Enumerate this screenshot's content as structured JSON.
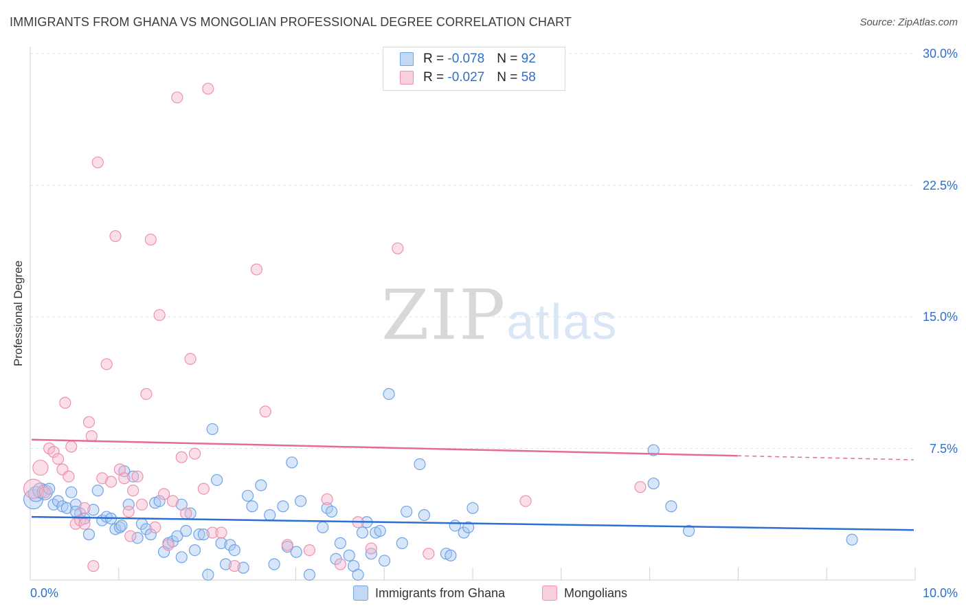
{
  "header": {
    "title": "IMMIGRANTS FROM GHANA VS MONGOLIAN PROFESSIONAL DEGREE CORRELATION CHART",
    "source": "Source: ZipAtlas.com"
  },
  "watermark": {
    "zip": "ZIP",
    "atlas": "atlas"
  },
  "legend": {
    "rows": [
      {
        "r_label": "R = ",
        "r_value": "-0.078",
        "n_label": "N = ",
        "n_value": "92",
        "color": "#a9c7f2"
      },
      {
        "r_label": "R = ",
        "r_value": "-0.027",
        "n_label": "N = ",
        "n_value": "58",
        "color": "#f6b8cb"
      }
    ]
  },
  "chart_data": {
    "type": "scatter",
    "title": "IMMIGRANTS FROM GHANA VS MONGOLIAN PROFESSIONAL DEGREE CORRELATION CHART",
    "xlabel": "",
    "ylabel": "Professional Degree",
    "xlim": [
      0,
      10
    ],
    "ylim": [
      0,
      30
    ],
    "x_tick_labels": [
      "0.0%",
      "10.0%"
    ],
    "y_ticks": [
      7.5,
      15.0,
      22.5,
      30.0
    ],
    "y_tick_labels": [
      "7.5%",
      "15.0%",
      "22.5%",
      "30.0%"
    ],
    "grid": true,
    "legend_position": "top-center",
    "series": [
      {
        "name": "Immigrants from Ghana",
        "color": "#6fa3e6",
        "fill": "#a9c7f2",
        "line_color": "#2a6fd1",
        "trend": {
          "x": [
            0.0,
            10.0
          ],
          "y": [
            3.6,
            2.85
          ],
          "dashed_from": null
        },
        "points": [
          [
            0.02,
            4.6,
            "L"
          ],
          [
            0.05,
            4.9,
            "M"
          ],
          [
            0.1,
            5.1,
            "M"
          ],
          [
            0.15,
            5.0,
            "M"
          ],
          [
            0.2,
            5.2,
            "S"
          ],
          [
            0.25,
            4.3,
            "S"
          ],
          [
            0.3,
            4.5,
            "S"
          ],
          [
            0.35,
            4.2,
            "S"
          ],
          [
            0.4,
            4.1,
            "S"
          ],
          [
            0.45,
            5.0,
            "S"
          ],
          [
            0.5,
            4.3,
            "S"
          ],
          [
            0.55,
            3.8,
            "S"
          ],
          [
            0.6,
            3.5,
            "S"
          ],
          [
            0.65,
            2.6,
            "S"
          ],
          [
            0.7,
            4.0,
            "S"
          ],
          [
            0.75,
            5.1,
            "S"
          ],
          [
            0.8,
            3.4,
            "S"
          ],
          [
            0.85,
            3.6,
            "S"
          ],
          [
            0.9,
            3.5,
            "S"
          ],
          [
            0.95,
            2.9,
            "S"
          ],
          [
            1.0,
            3.0,
            "S"
          ],
          [
            1.05,
            6.2,
            "S"
          ],
          [
            1.1,
            4.3,
            "S"
          ],
          [
            1.15,
            5.9,
            "S"
          ],
          [
            1.2,
            2.4,
            "S"
          ],
          [
            1.25,
            3.2,
            "S"
          ],
          [
            1.3,
            2.9,
            "S"
          ],
          [
            1.35,
            2.6,
            "S"
          ],
          [
            1.4,
            4.4,
            "S"
          ],
          [
            1.45,
            4.5,
            "S"
          ],
          [
            1.5,
            1.6,
            "S"
          ],
          [
            1.55,
            2.1,
            "S"
          ],
          [
            1.6,
            2.2,
            "S"
          ],
          [
            1.65,
            2.5,
            "S"
          ],
          [
            1.7,
            1.3,
            "S"
          ],
          [
            1.75,
            2.8,
            "S"
          ],
          [
            1.8,
            3.8,
            "S"
          ],
          [
            1.85,
            1.7,
            "S"
          ],
          [
            1.9,
            2.6,
            "S"
          ],
          [
            1.95,
            2.6,
            "S"
          ],
          [
            2.0,
            0.3,
            "S"
          ],
          [
            2.05,
            8.6,
            "S"
          ],
          [
            2.1,
            5.7,
            "S"
          ],
          [
            2.15,
            2.1,
            "S"
          ],
          [
            2.2,
            0.9,
            "S"
          ],
          [
            2.25,
            2.0,
            "S"
          ],
          [
            2.3,
            1.7,
            "S"
          ],
          [
            2.4,
            0.7,
            "S"
          ],
          [
            2.45,
            4.8,
            "S"
          ],
          [
            2.5,
            4.2,
            "S"
          ],
          [
            2.6,
            5.4,
            "S"
          ],
          [
            2.7,
            3.7,
            "S"
          ],
          [
            2.75,
            0.9,
            "S"
          ],
          [
            2.85,
            4.2,
            "S"
          ],
          [
            2.9,
            1.9,
            "S"
          ],
          [
            2.95,
            6.7,
            "S"
          ],
          [
            3.0,
            1.6,
            "S"
          ],
          [
            3.05,
            4.5,
            "S"
          ],
          [
            3.15,
            0.3,
            "S"
          ],
          [
            3.3,
            3.0,
            "S"
          ],
          [
            3.35,
            4.1,
            "S"
          ],
          [
            3.4,
            3.9,
            "S"
          ],
          [
            3.45,
            1.2,
            "S"
          ],
          [
            3.5,
            2.1,
            "S"
          ],
          [
            3.6,
            1.4,
            "S"
          ],
          [
            3.65,
            0.8,
            "S"
          ],
          [
            3.7,
            0.3,
            "S"
          ],
          [
            3.75,
            2.7,
            "S"
          ],
          [
            3.8,
            3.3,
            "S"
          ],
          [
            3.85,
            1.5,
            "S"
          ],
          [
            3.9,
            2.7,
            "S"
          ],
          [
            3.95,
            2.8,
            "S"
          ],
          [
            4.0,
            1.1,
            "S"
          ],
          [
            4.05,
            10.6,
            "S"
          ],
          [
            4.2,
            2.1,
            "S"
          ],
          [
            4.25,
            3.9,
            "S"
          ],
          [
            4.4,
            6.6,
            "S"
          ],
          [
            4.45,
            3.7,
            "S"
          ],
          [
            4.7,
            1.5,
            "S"
          ],
          [
            4.75,
            1.4,
            "S"
          ],
          [
            4.8,
            3.1,
            "S"
          ],
          [
            4.9,
            2.7,
            "S"
          ],
          [
            4.95,
            3.0,
            "S"
          ],
          [
            5.0,
            4.1,
            "S"
          ],
          [
            7.05,
            7.4,
            "S"
          ],
          [
            7.05,
            5.5,
            "S"
          ],
          [
            7.25,
            4.2,
            "S"
          ],
          [
            7.45,
            2.8,
            "S"
          ],
          [
            9.3,
            2.3,
            "S"
          ],
          [
            0.5,
            3.9,
            "S"
          ],
          [
            1.02,
            3.1,
            "S"
          ],
          [
            1.7,
            4.3,
            "S"
          ]
        ]
      },
      {
        "name": "Mongolians",
        "color": "#f08fae",
        "fill": "#f6b8cb",
        "line_color": "#e46b93",
        "trend": {
          "x": [
            0.0,
            10.0
          ],
          "y": [
            8.0,
            6.85
          ],
          "dashed_from": 8.0
        },
        "points": [
          [
            0.02,
            5.2,
            "L"
          ],
          [
            0.1,
            6.4,
            "M"
          ],
          [
            0.15,
            5.0,
            "S"
          ],
          [
            0.2,
            7.5,
            "S"
          ],
          [
            0.25,
            7.3,
            "S"
          ],
          [
            0.3,
            6.9,
            "S"
          ],
          [
            0.35,
            6.3,
            "S"
          ],
          [
            0.38,
            10.1,
            "S"
          ],
          [
            0.42,
            5.9,
            "S"
          ],
          [
            0.45,
            7.6,
            "S"
          ],
          [
            0.5,
            3.2,
            "S"
          ],
          [
            0.55,
            3.4,
            "S"
          ],
          [
            0.6,
            4.1,
            "S"
          ],
          [
            0.65,
            9.0,
            "S"
          ],
          [
            0.68,
            8.2,
            "S"
          ],
          [
            0.7,
            0.8,
            "S"
          ],
          [
            0.75,
            23.8,
            "S"
          ],
          [
            0.8,
            5.8,
            "S"
          ],
          [
            0.85,
            12.3,
            "S"
          ],
          [
            0.9,
            5.6,
            "S"
          ],
          [
            0.95,
            19.6,
            "S"
          ],
          [
            1.0,
            6.3,
            "S"
          ],
          [
            1.05,
            5.8,
            "S"
          ],
          [
            1.1,
            3.9,
            "S"
          ],
          [
            1.15,
            5.1,
            "S"
          ],
          [
            1.2,
            5.9,
            "S"
          ],
          [
            1.25,
            4.3,
            "S"
          ],
          [
            1.3,
            10.6,
            "S"
          ],
          [
            1.35,
            19.4,
            "S"
          ],
          [
            1.4,
            3.0,
            "S"
          ],
          [
            1.45,
            15.1,
            "S"
          ],
          [
            1.5,
            4.9,
            "S"
          ],
          [
            1.55,
            2.0,
            "S"
          ],
          [
            1.6,
            4.5,
            "S"
          ],
          [
            1.65,
            27.5,
            "S"
          ],
          [
            1.7,
            7.0,
            "S"
          ],
          [
            1.75,
            3.8,
            "S"
          ],
          [
            1.8,
            12.6,
            "S"
          ],
          [
            1.85,
            7.2,
            "S"
          ],
          [
            1.95,
            5.2,
            "S"
          ],
          [
            2.0,
            28.0,
            "S"
          ],
          [
            2.05,
            2.7,
            "S"
          ],
          [
            2.15,
            2.7,
            "S"
          ],
          [
            2.3,
            0.8,
            "S"
          ],
          [
            2.55,
            17.7,
            "S"
          ],
          [
            2.65,
            9.6,
            "S"
          ],
          [
            2.9,
            2.0,
            "S"
          ],
          [
            3.15,
            1.7,
            "S"
          ],
          [
            3.35,
            4.6,
            "S"
          ],
          [
            3.5,
            0.9,
            "S"
          ],
          [
            3.7,
            3.3,
            "S"
          ],
          [
            3.85,
            1.8,
            "S"
          ],
          [
            4.15,
            18.9,
            "S"
          ],
          [
            4.5,
            1.5,
            "S"
          ],
          [
            5.6,
            4.5,
            "S"
          ],
          [
            6.9,
            5.3,
            "S"
          ],
          [
            0.6,
            3.2,
            "S"
          ],
          [
            1.12,
            2.5,
            "S"
          ]
        ]
      }
    ]
  },
  "bottom_legend": {
    "items": [
      {
        "label": "Immigrants from Ghana",
        "color": "#a9c7f2"
      },
      {
        "label": "Mongolians",
        "color": "#f6b8cb"
      }
    ]
  }
}
